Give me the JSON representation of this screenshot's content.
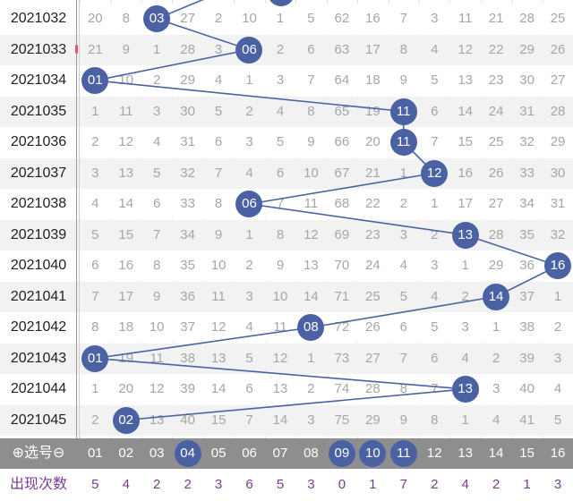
{
  "trend_table": {
    "rows": [
      {
        "issue": "2021032",
        "cells": [
          "20",
          "8",
          "03",
          "27",
          "2",
          "10",
          "1",
          "5",
          "62",
          "16",
          "7",
          "3",
          "11",
          "21",
          "28",
          "25"
        ],
        "hit_col": 2,
        "hit_label": "03"
      },
      {
        "issue": "2021033",
        "cells": [
          "21",
          "9",
          "1",
          "28",
          "3",
          "06",
          "2",
          "6",
          "63",
          "17",
          "8",
          "4",
          "12",
          "22",
          "29",
          "26"
        ],
        "hit_col": 5,
        "hit_label": "06"
      },
      {
        "issue": "2021034",
        "cells": [
          "01",
          "10",
          "2",
          "29",
          "4",
          "1",
          "3",
          "7",
          "64",
          "18",
          "9",
          "5",
          "13",
          "23",
          "30",
          "27"
        ],
        "hit_col": 0,
        "hit_label": "01"
      },
      {
        "issue": "2021035",
        "cells": [
          "1",
          "11",
          "3",
          "30",
          "5",
          "2",
          "4",
          "8",
          "65",
          "19",
          "11",
          "6",
          "14",
          "24",
          "31",
          "28"
        ],
        "hit_col": 10,
        "hit_label": "11"
      },
      {
        "issue": "2021036",
        "cells": [
          "2",
          "12",
          "4",
          "31",
          "6",
          "3",
          "5",
          "9",
          "66",
          "20",
          "11",
          "7",
          "15",
          "25",
          "32",
          "29"
        ],
        "hit_col": 10,
        "hit_label": "11"
      },
      {
        "issue": "2021037",
        "cells": [
          "3",
          "13",
          "5",
          "32",
          "7",
          "4",
          "6",
          "10",
          "67",
          "21",
          "1",
          "12",
          "16",
          "26",
          "33",
          "30"
        ],
        "hit_col": 11,
        "hit_label": "12"
      },
      {
        "issue": "2021038",
        "cells": [
          "4",
          "14",
          "6",
          "33",
          "8",
          "06",
          "7",
          "11",
          "68",
          "22",
          "2",
          "1",
          "17",
          "27",
          "34",
          "31"
        ],
        "hit_col": 5,
        "hit_label": "06"
      },
      {
        "issue": "2021039",
        "cells": [
          "5",
          "15",
          "7",
          "34",
          "9",
          "1",
          "8",
          "12",
          "69",
          "23",
          "3",
          "2",
          "13",
          "28",
          "35",
          "32"
        ],
        "hit_col": 12,
        "hit_label": "13"
      },
      {
        "issue": "2021040",
        "cells": [
          "6",
          "16",
          "8",
          "35",
          "10",
          "2",
          "9",
          "13",
          "70",
          "24",
          "4",
          "3",
          "1",
          "29",
          "36",
          "16"
        ],
        "hit_col": 15,
        "hit_label": "16"
      },
      {
        "issue": "2021041",
        "cells": [
          "7",
          "17",
          "9",
          "36",
          "11",
          "3",
          "10",
          "14",
          "71",
          "25",
          "5",
          "4",
          "2",
          "14",
          "37",
          "1"
        ],
        "hit_col": 13,
        "hit_label": "14"
      },
      {
        "issue": "2021042",
        "cells": [
          "8",
          "18",
          "10",
          "37",
          "12",
          "4",
          "11",
          "08",
          "72",
          "26",
          "6",
          "5",
          "3",
          "1",
          "38",
          "2"
        ],
        "hit_col": 7,
        "hit_label": "08"
      },
      {
        "issue": "2021043",
        "cells": [
          "01",
          "19",
          "11",
          "38",
          "13",
          "5",
          "12",
          "1",
          "73",
          "27",
          "7",
          "6",
          "4",
          "2",
          "39",
          "3"
        ],
        "hit_col": 0,
        "hit_label": "01"
      },
      {
        "issue": "2021044",
        "cells": [
          "1",
          "20",
          "12",
          "39",
          "14",
          "6",
          "13",
          "2",
          "74",
          "28",
          "8",
          "7",
          "13",
          "3",
          "40",
          "4"
        ],
        "hit_col": 12,
        "hit_label": "13"
      },
      {
        "issue": "2021045",
        "cells": [
          "2",
          "02",
          "13",
          "40",
          "15",
          "7",
          "14",
          "3",
          "75",
          "29",
          "9",
          "8",
          "1",
          "4",
          "41",
          "5"
        ],
        "hit_col": 1,
        "hit_label": "02"
      }
    ]
  },
  "selector": {
    "label": "⊕选号⊖",
    "numbers": [
      "01",
      "02",
      "03",
      "04",
      "05",
      "06",
      "07",
      "08",
      "09",
      "10",
      "11",
      "12",
      "13",
      "14",
      "15",
      "16"
    ],
    "selected": [
      3,
      8,
      9,
      10
    ]
  },
  "counts": {
    "label": "出现次数",
    "values": [
      "5",
      "4",
      "2",
      "2",
      "3",
      "6",
      "5",
      "3",
      "0",
      "1",
      "7",
      "2",
      "4",
      "2",
      "1",
      "3"
    ]
  },
  "colors": {
    "ball": "#4a62a3",
    "count_text": "#7b3b93",
    "selector_bg": "#8e8e8e"
  }
}
